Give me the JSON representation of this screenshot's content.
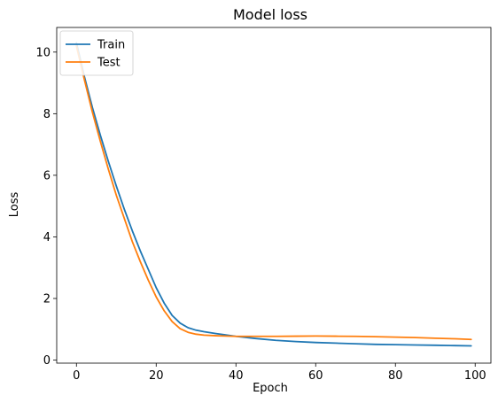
{
  "chart_data": {
    "type": "line",
    "title": "Model loss",
    "xlabel": "Epoch",
    "ylabel": "Loss",
    "xlim": [
      -4.95,
      103.95
    ],
    "ylim": [
      -0.1,
      10.8
    ],
    "xticks": [
      0,
      20,
      40,
      60,
      80,
      100
    ],
    "yticks": [
      0,
      2,
      4,
      6,
      8,
      10
    ],
    "legend_position": "upper-left",
    "series": [
      {
        "name": "Train",
        "color": "#1f77b4",
        "x": [
          0,
          2,
          4,
          6,
          8,
          10,
          12,
          14,
          16,
          18,
          20,
          22,
          24,
          26,
          28,
          30,
          32,
          35,
          40,
          45,
          50,
          55,
          60,
          65,
          70,
          75,
          80,
          85,
          90,
          95,
          99
        ],
        "y": [
          10.3,
          9.2,
          8.2,
          7.3,
          6.45,
          5.65,
          4.9,
          4.2,
          3.55,
          2.95,
          2.35,
          1.85,
          1.45,
          1.2,
          1.05,
          0.97,
          0.92,
          0.86,
          0.77,
          0.7,
          0.64,
          0.6,
          0.57,
          0.55,
          0.53,
          0.51,
          0.5,
          0.49,
          0.48,
          0.47,
          0.46
        ]
      },
      {
        "name": "Test",
        "color": "#ff7f0e",
        "x": [
          0,
          2,
          4,
          6,
          8,
          10,
          12,
          14,
          16,
          18,
          20,
          22,
          24,
          26,
          28,
          30,
          32,
          35,
          40,
          45,
          50,
          55,
          60,
          65,
          70,
          75,
          80,
          85,
          90,
          95,
          99
        ],
        "y": [
          10.2,
          9.1,
          8.05,
          7.1,
          6.2,
          5.35,
          4.6,
          3.85,
          3.2,
          2.6,
          2.05,
          1.6,
          1.25,
          1.02,
          0.9,
          0.84,
          0.81,
          0.79,
          0.77,
          0.77,
          0.77,
          0.775,
          0.78,
          0.775,
          0.77,
          0.76,
          0.745,
          0.73,
          0.71,
          0.69,
          0.67
        ]
      }
    ]
  }
}
